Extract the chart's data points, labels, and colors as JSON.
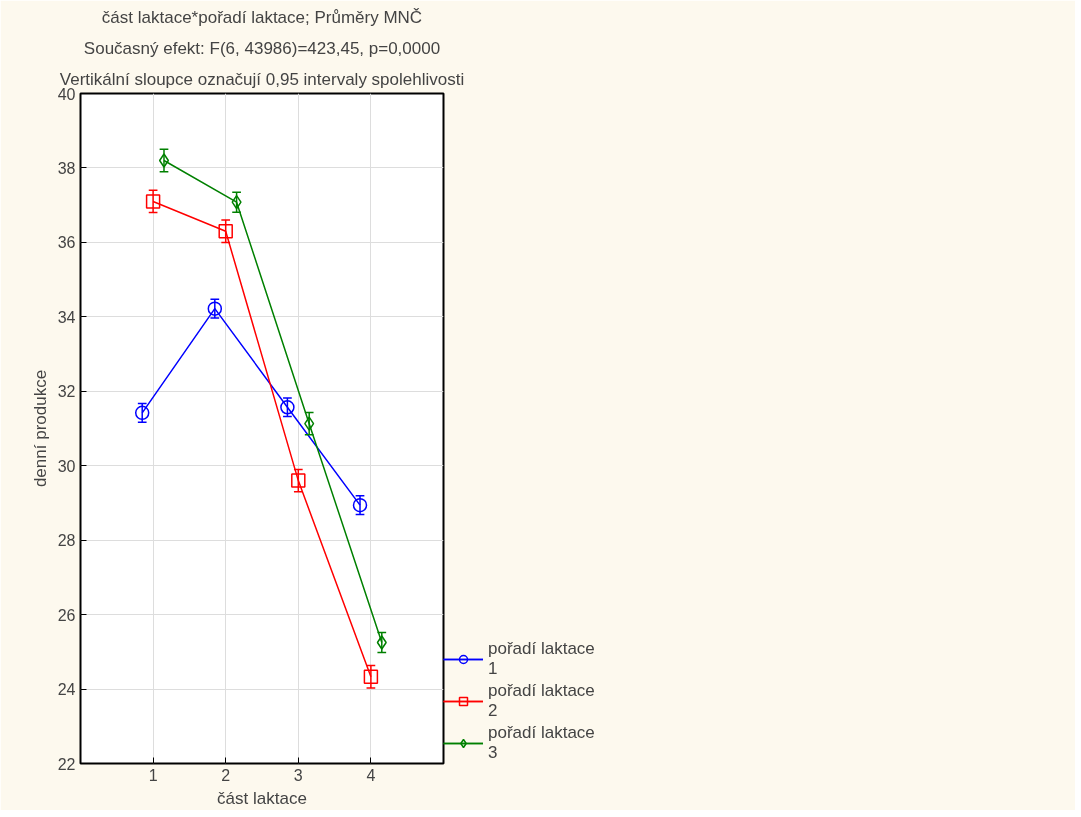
{
  "chart_data": {
    "type": "line",
    "title": "část laktace*pořadí laktace; Průměry MNČ",
    "subtitle": "Současný efekt: F(6, 43986)=423,45, p=0,0000",
    "annotations": [
      "Vertikální sloupce označují 0,95 intervaly spolehlivosti"
    ],
    "xlabel": "část laktace",
    "ylabel": "denní produkce",
    "xlim": [
      0,
      5
    ],
    "xticks": [
      1,
      2,
      3,
      4
    ],
    "ylim": [
      22,
      40
    ],
    "yticks": [
      22,
      24,
      26,
      28,
      30,
      32,
      34,
      36,
      38,
      40
    ],
    "grid": true,
    "legend": "bottom right",
    "series": [
      {
        "name": "pořadí laktace 1",
        "color": "#0000ff",
        "marker": "circle",
        "x": [
          0.85,
          1.85,
          2.85,
          3.85
        ],
        "values": [
          31.42,
          34.22,
          31.57,
          28.94
        ],
        "errors": [
          0.25,
          0.25,
          0.25,
          0.25
        ]
      },
      {
        "name": "pořadí laktace 2",
        "color": "#ff0000",
        "marker": "square",
        "x": [
          1,
          2,
          3,
          4
        ],
        "values": [
          37.1,
          36.3,
          29.6,
          24.33
        ],
        "errors": [
          0.3,
          0.3,
          0.3,
          0.3
        ]
      },
      {
        "name": "pořadí laktace 3",
        "color": "#008000",
        "marker": "diamond",
        "x": [
          1.15,
          2.15,
          3.15,
          4.15
        ],
        "values": [
          38.2,
          37.08,
          31.13,
          25.25
        ],
        "errors": [
          0.3,
          0.27,
          0.3,
          0.27
        ]
      }
    ]
  }
}
